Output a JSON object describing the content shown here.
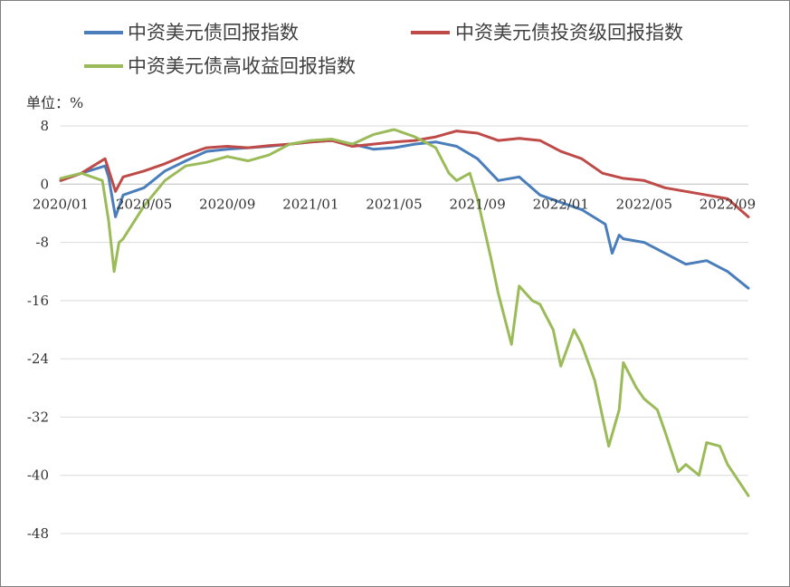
{
  "chart_data": {
    "type": "line",
    "unit_label": "单位：%",
    "ylim": [
      -48,
      8
    ],
    "y_ticks": [
      8,
      0,
      -8,
      -16,
      -24,
      -32,
      -40,
      -48
    ],
    "x_tick_labels": [
      "2020/01",
      "2020/05",
      "2020/09",
      "2021/01",
      "2021/05",
      "2021/09",
      "2022/01",
      "2022/05",
      "2022/09"
    ],
    "x_months": [
      "2020-01",
      "2020-02",
      "2020-03",
      "2020-04",
      "2020-05",
      "2020-06",
      "2020-07",
      "2020-08",
      "2020-09",
      "2020-10",
      "2020-11",
      "2020-12",
      "2021-01",
      "2021-02",
      "2021-03",
      "2021-04",
      "2021-05",
      "2021-06",
      "2021-07",
      "2021-08",
      "2021-09",
      "2021-10",
      "2021-11",
      "2021-12",
      "2022-01",
      "2022-02",
      "2022-03",
      "2022-04",
      "2022-05",
      "2022-06",
      "2022-07",
      "2022-08",
      "2022-09",
      "2022-10"
    ],
    "grid": true,
    "legend_position": "top",
    "series": [
      {
        "name": "中资美元债回报指数",
        "color": "#4a7ebb",
        "points": [
          [
            "2020-01",
            0.5
          ],
          [
            "2020-02",
            1.5
          ],
          [
            "2020-03-05",
            2.5
          ],
          [
            "2020-03-10",
            1.0
          ],
          [
            "2020-03-20",
            -4.5
          ],
          [
            "2020-04",
            -1.5
          ],
          [
            "2020-05",
            -0.5
          ],
          [
            "2020-06",
            1.8
          ],
          [
            "2020-07",
            3.2
          ],
          [
            "2020-08",
            4.5
          ],
          [
            "2020-09",
            4.8
          ],
          [
            "2020-10",
            5.0
          ],
          [
            "2020-11",
            5.2
          ],
          [
            "2020-12",
            5.5
          ],
          [
            "2021-01",
            5.8
          ],
          [
            "2021-02",
            6.0
          ],
          [
            "2021-03",
            5.5
          ],
          [
            "2021-04",
            4.8
          ],
          [
            "2021-05",
            5.0
          ],
          [
            "2021-06",
            5.5
          ],
          [
            "2021-07",
            5.8
          ],
          [
            "2021-08",
            5.2
          ],
          [
            "2021-09",
            3.5
          ],
          [
            "2021-10",
            0.5
          ],
          [
            "2021-11",
            1.0
          ],
          [
            "2021-12",
            -1.5
          ],
          [
            "2022-01",
            -2.5
          ],
          [
            "2022-02",
            -3.5
          ],
          [
            "2022-03-05",
            -5.5
          ],
          [
            "2022-03-15",
            -9.5
          ],
          [
            "2022-03-25",
            -7.0
          ],
          [
            "2022-04",
            -7.5
          ],
          [
            "2022-05",
            -8.0
          ],
          [
            "2022-06",
            -9.5
          ],
          [
            "2022-07",
            -11.0
          ],
          [
            "2022-08",
            -10.5
          ],
          [
            "2022-09",
            -12.0
          ],
          [
            "2022-10",
            -14.3
          ]
        ]
      },
      {
        "name": "中资美元债投资级回报指数",
        "color": "#be4b48",
        "points": [
          [
            "2020-01",
            0.5
          ],
          [
            "2020-02",
            1.5
          ],
          [
            "2020-03-05",
            3.5
          ],
          [
            "2020-03-10",
            2.0
          ],
          [
            "2020-03-20",
            -1.0
          ],
          [
            "2020-04",
            1.0
          ],
          [
            "2020-05",
            1.8
          ],
          [
            "2020-06",
            2.8
          ],
          [
            "2020-07",
            4.0
          ],
          [
            "2020-08",
            5.0
          ],
          [
            "2020-09",
            5.2
          ],
          [
            "2020-10",
            5.0
          ],
          [
            "2020-11",
            5.3
          ],
          [
            "2020-12",
            5.5
          ],
          [
            "2021-01",
            5.8
          ],
          [
            "2021-02",
            6.0
          ],
          [
            "2021-03",
            5.2
          ],
          [
            "2021-04",
            5.5
          ],
          [
            "2021-05",
            5.8
          ],
          [
            "2021-06",
            6.0
          ],
          [
            "2021-07",
            6.5
          ],
          [
            "2021-08",
            7.3
          ],
          [
            "2021-09",
            7.0
          ],
          [
            "2021-10",
            6.0
          ],
          [
            "2021-11",
            6.3
          ],
          [
            "2021-12",
            6.0
          ],
          [
            "2022-01",
            4.5
          ],
          [
            "2022-02",
            3.5
          ],
          [
            "2022-03",
            1.5
          ],
          [
            "2022-04",
            0.8
          ],
          [
            "2022-05",
            0.5
          ],
          [
            "2022-06",
            -0.5
          ],
          [
            "2022-07",
            -1.0
          ],
          [
            "2022-08",
            -1.5
          ],
          [
            "2022-09",
            -2.0
          ],
          [
            "2022-10",
            -4.5
          ]
        ]
      },
      {
        "name": "中资美元债高收益回报指数",
        "color": "#9bbb59",
        "points": [
          [
            "2020-01",
            0.8
          ],
          [
            "2020-02",
            1.5
          ],
          [
            "2020-03-01",
            0.5
          ],
          [
            "2020-03-10",
            -5.0
          ],
          [
            "2020-03-18",
            -12.0
          ],
          [
            "2020-03-25",
            -8.0
          ],
          [
            "2020-04",
            -7.5
          ],
          [
            "2020-05",
            -3.0
          ],
          [
            "2020-06",
            0.5
          ],
          [
            "2020-07",
            2.5
          ],
          [
            "2020-08",
            3.0
          ],
          [
            "2020-09",
            3.8
          ],
          [
            "2020-10",
            3.2
          ],
          [
            "2020-11",
            4.0
          ],
          [
            "2020-12",
            5.5
          ],
          [
            "2021-01",
            6.0
          ],
          [
            "2021-02",
            6.2
          ],
          [
            "2021-03",
            5.5
          ],
          [
            "2021-04",
            6.8
          ],
          [
            "2021-05",
            7.5
          ],
          [
            "2021-06",
            6.5
          ],
          [
            "2021-07",
            5.0
          ],
          [
            "2021-07-20",
            1.5
          ],
          [
            "2021-08",
            0.5
          ],
          [
            "2021-08-20",
            1.5
          ],
          [
            "2021-09",
            -2.0
          ],
          [
            "2021-09-20",
            -10.0
          ],
          [
            "2021-10",
            -15.0
          ],
          [
            "2021-10-20",
            -22.0
          ],
          [
            "2021-11",
            -14.0
          ],
          [
            "2021-11-20",
            -16.0
          ],
          [
            "2021-12",
            -16.5
          ],
          [
            "2021-12-20",
            -20.0
          ],
          [
            "2022-01",
            -25.0
          ],
          [
            "2022-01-20",
            -20.0
          ],
          [
            "2022-02",
            -22.0
          ],
          [
            "2022-02-20",
            -27.0
          ],
          [
            "2022-03-10",
            -36.0
          ],
          [
            "2022-03-25",
            -31.0
          ],
          [
            "2022-04",
            -24.5
          ],
          [
            "2022-04-20",
            -28.0
          ],
          [
            "2022-05",
            -29.5
          ],
          [
            "2022-05-20",
            -31.0
          ],
          [
            "2022-06",
            -34.0
          ],
          [
            "2022-06-20",
            -39.5
          ],
          [
            "2022-07",
            -38.5
          ],
          [
            "2022-07-20",
            -40.0
          ],
          [
            "2022-08",
            -35.5
          ],
          [
            "2022-08-20",
            -36.0
          ],
          [
            "2022-09",
            -38.5
          ],
          [
            "2022-09-15",
            -40.5
          ],
          [
            "2022-10",
            -42.8
          ]
        ]
      }
    ]
  }
}
